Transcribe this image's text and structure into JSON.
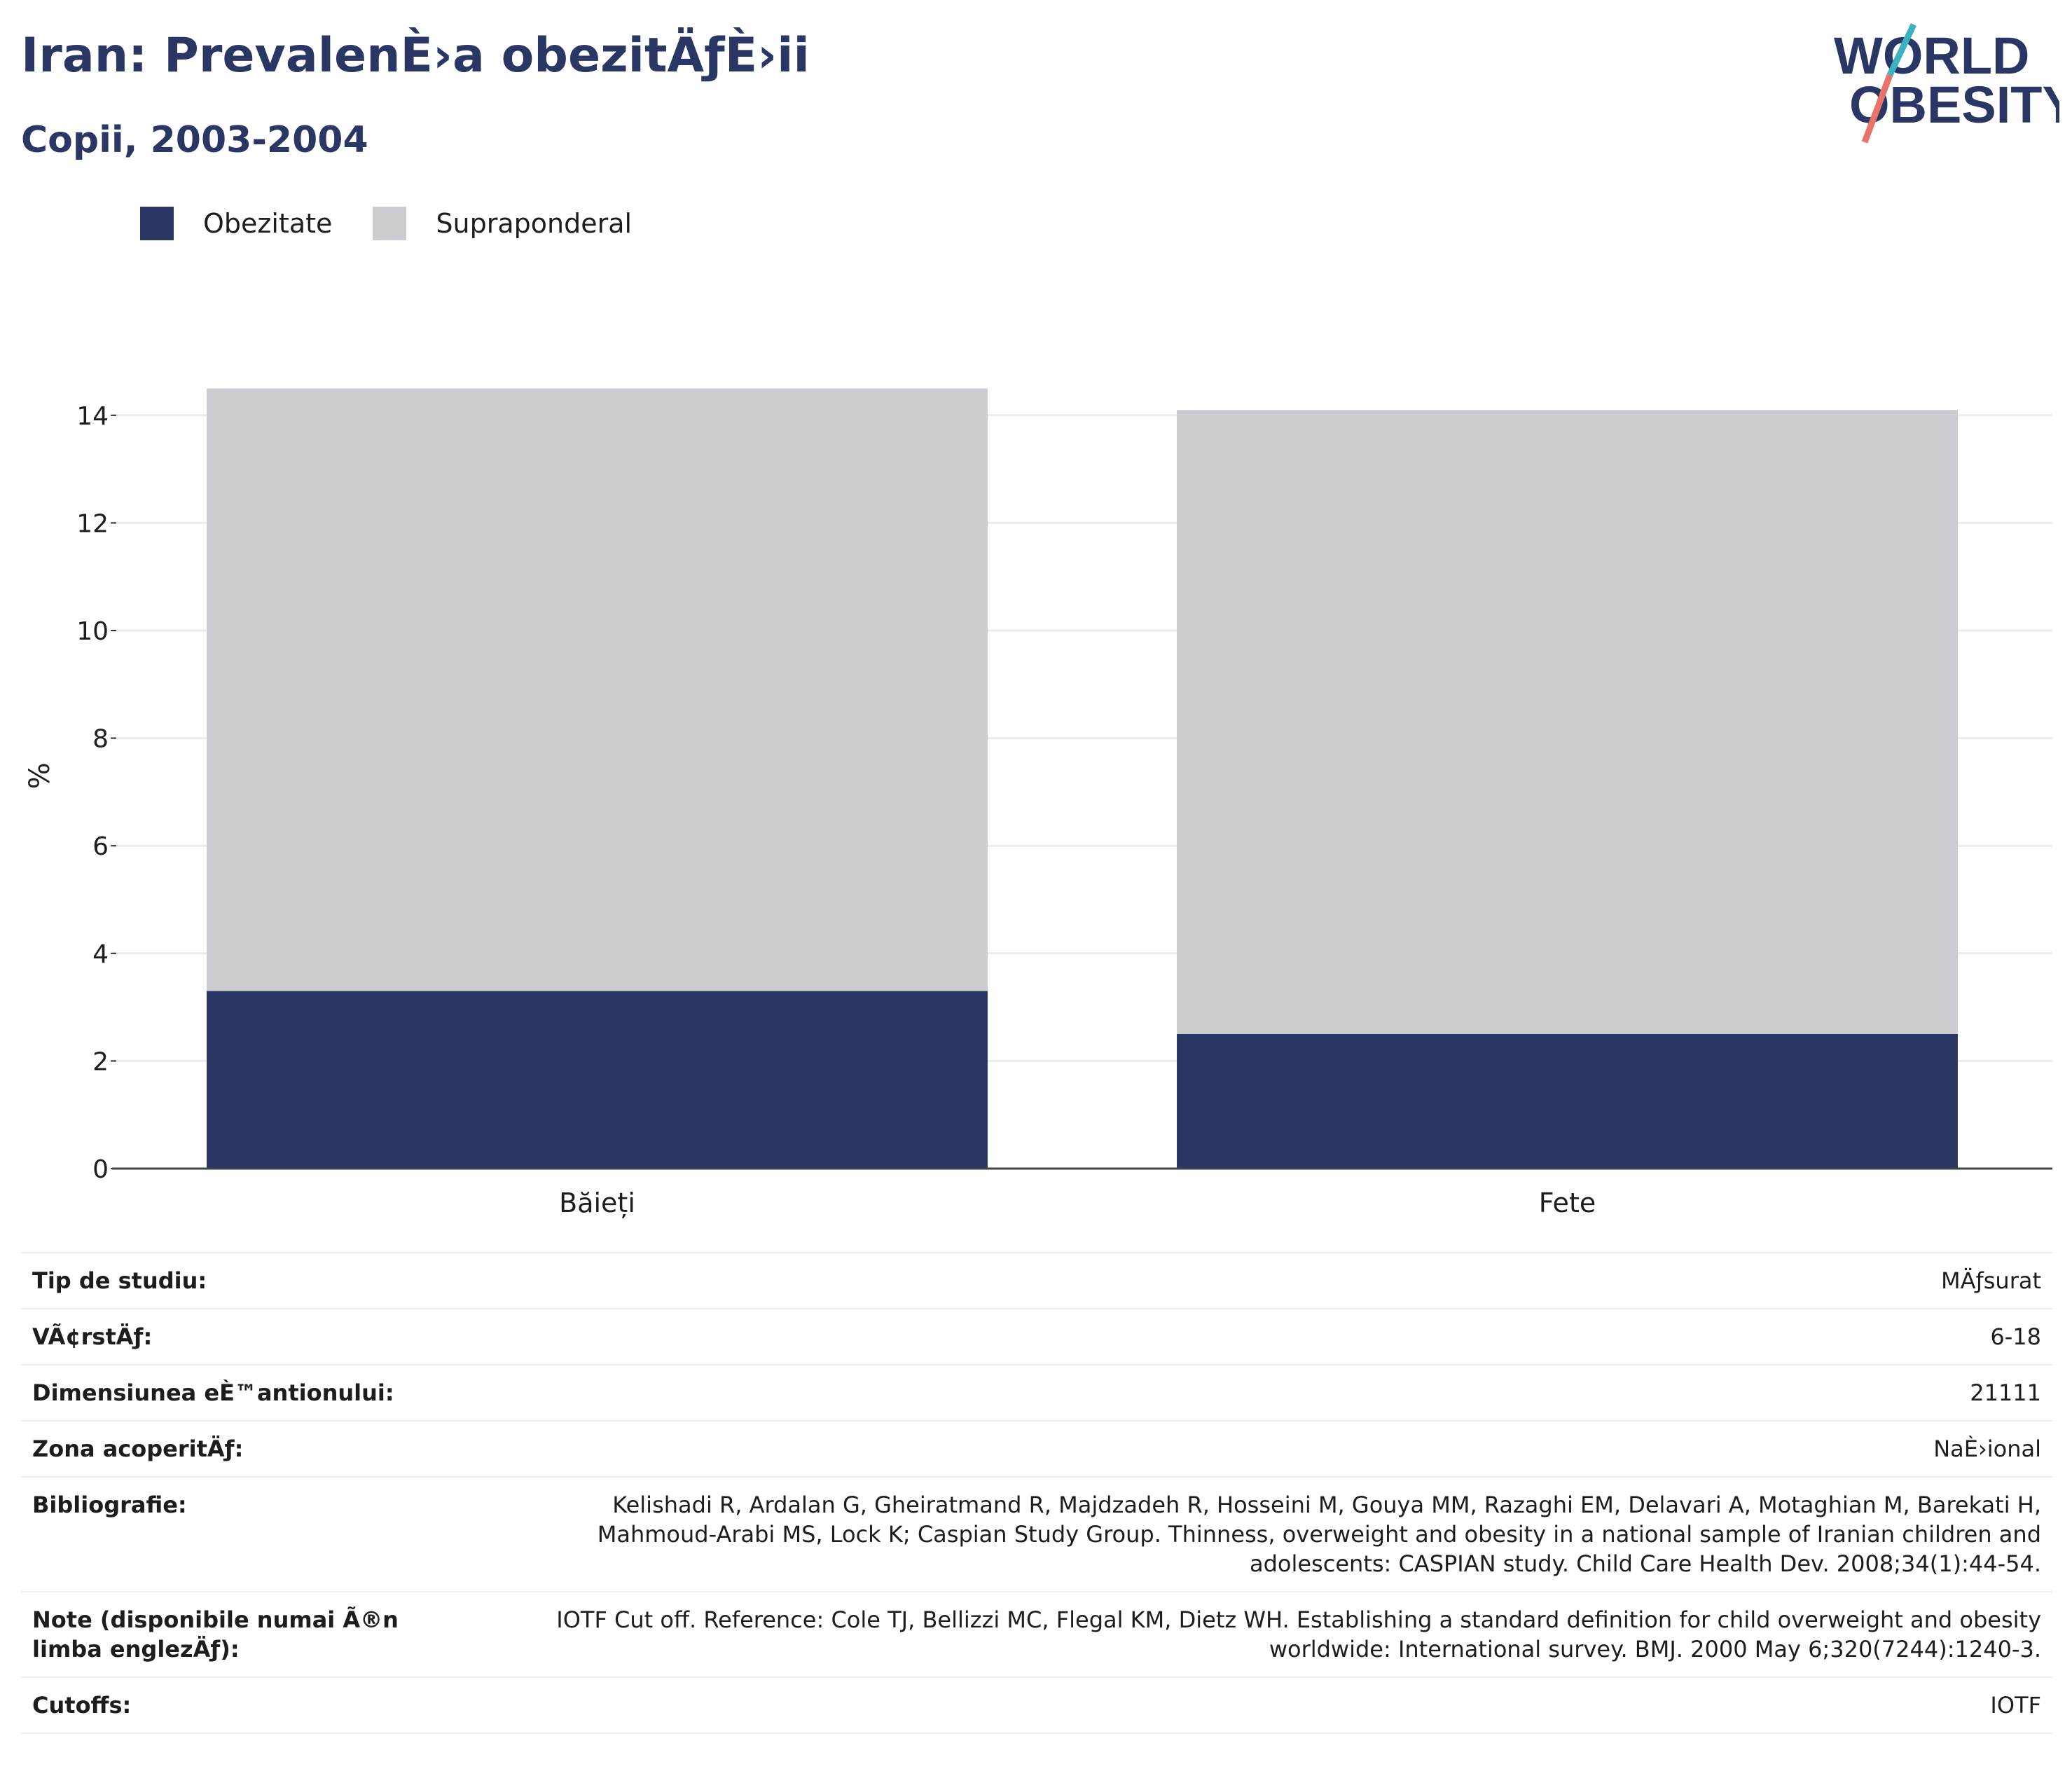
{
  "header": {
    "title": "Iran: PrevalenÈ›a obezitÄƒÈ›ii",
    "subtitle": "Copii, 2003-2004"
  },
  "logo": {
    "line1": "WORLD",
    "line2": "OBESITY",
    "colors": {
      "text": "#2a3663",
      "slash_top": "#3bb2bf",
      "slash_bottom": "#e8736a"
    }
  },
  "legend": [
    {
      "label": "Obezitate",
      "color": "#2a3663"
    },
    {
      "label": "Supraponderal",
      "color": "#cacccf"
    }
  ],
  "chart_data": {
    "type": "bar",
    "stacked": true,
    "categories": [
      "Băieți",
      "Fete"
    ],
    "series": [
      {
        "name": "Obezitate",
        "values": [
          3.3,
          2.5
        ],
        "color": "#2a3663"
      },
      {
        "name": "Supraponderal",
        "values": [
          11.2,
          11.6
        ],
        "color": "#cacccf"
      }
    ],
    "ylabel": "%",
    "ylim": [
      0,
      14.5
    ],
    "yticks": [
      0,
      2,
      4,
      6,
      8,
      10,
      12,
      14
    ],
    "grid": true,
    "legend_position": "top-left"
  },
  "info": [
    {
      "label": "Tip de studiu:",
      "value": "MÄƒsurat"
    },
    {
      "label": "VÃ¢rstÄƒ:",
      "value": "6-18"
    },
    {
      "label": "Dimensiunea eÈ™antionului:",
      "value": "21111"
    },
    {
      "label": "Zona acoperitÄƒ:",
      "value": "NaÈ›ional"
    },
    {
      "label": "Bibliografie:",
      "value": "Kelishadi R, Ardalan G, Gheiratmand R, Majdzadeh R, Hosseini M, Gouya MM, Razaghi EM, Delavari A, Motaghian M, Barekati H, Mahmoud-Arabi MS, Lock K; Caspian Study Group. Thinness, overweight and obesity in a national sample of Iranian children and adolescents: CASPIAN study. Child Care Health Dev. 2008;34(1):44-54."
    },
    {
      "label": "Note (disponibile numai Ã®n limba englezÄƒ):",
      "value": "IOTF Cut off. Reference: Cole TJ, Bellizzi MC, Flegal KM, Dietz WH. Establishing a standard definition for child overweight and obesity worldwide: International survey. BMJ. 2000 May 6;320(7244):1240-3."
    },
    {
      "label": "Cutoffs:",
      "value": "IOTF"
    }
  ]
}
